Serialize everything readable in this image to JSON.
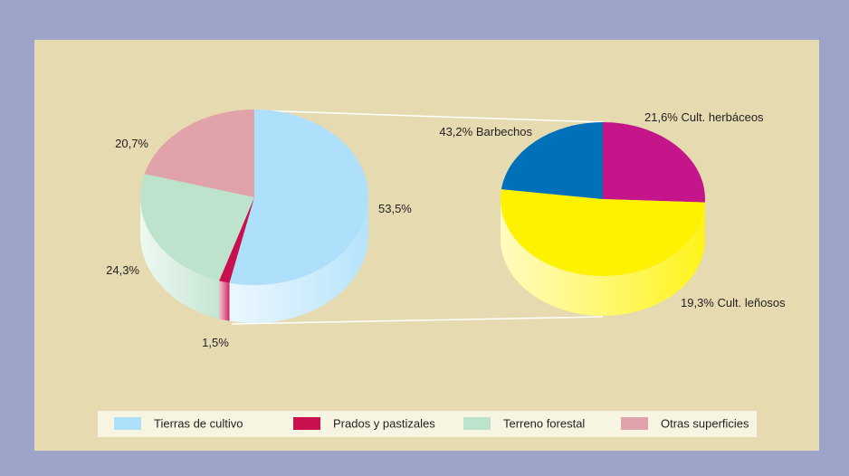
{
  "chart_data": [
    {
      "type": "pie",
      "categories": [
        "Tierras de cultivo",
        "Prados y pastizales",
        "Terreno forestal",
        "Otras superficies"
      ],
      "values": [
        53.5,
        1.5,
        24.3,
        20.7
      ],
      "value_labels": [
        "53,5%",
        "1,5%",
        "24,3%",
        "20,7%"
      ],
      "colors": [
        "#aee0fb",
        "#c8104f",
        "#bde3cc",
        "#e0a3a9"
      ],
      "legend": "bottom"
    },
    {
      "type": "pie",
      "categories": [
        "Cult. herbáceos",
        "Barbechos",
        "Cult. leñosos"
      ],
      "values": [
        21.6,
        43.2,
        19.3
      ],
      "value_labels": [
        "21,6%",
        "43,2%",
        "19,3%"
      ],
      "colors": [
        "#c4168a",
        "#fff200",
        "#0070b8"
      ]
    }
  ]
}
